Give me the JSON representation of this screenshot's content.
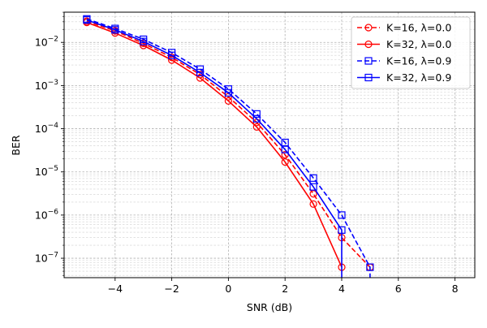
{
  "chart_data": {
    "type": "line",
    "xlabel": "SNR (dB)",
    "ylabel": "BER",
    "xlim": [
      -5.8,
      8.7
    ],
    "ylim_log10": [
      -7.45,
      -1.3
    ],
    "yscale": "log",
    "grid": "both (major and minor)",
    "legend_position": "upper right",
    "xticks": [
      -4,
      -2,
      0,
      2,
      4,
      6,
      8
    ],
    "xtick_labels": [
      "−4",
      "−2",
      "0",
      "2",
      "4",
      "6",
      "8"
    ],
    "yticks": [
      {
        "exp": -7,
        "base": "10",
        "sup": "−7"
      },
      {
        "exp": -6,
        "base": "10",
        "sup": "−6"
      },
      {
        "exp": -5,
        "base": "10",
        "sup": "−5"
      },
      {
        "exp": -4,
        "base": "10",
        "sup": "−4"
      },
      {
        "exp": -3,
        "base": "10",
        "sup": "−3"
      },
      {
        "exp": -2,
        "base": "10",
        "sup": "−2"
      }
    ],
    "series": [
      {
        "name": "K=16, λ=0.0",
        "color": "#ff0000",
        "linestyle": "dashed",
        "marker": "circle",
        "x": [
          -5,
          -4,
          -3,
          -2,
          -1,
          0,
          1,
          2,
          3,
          4,
          5
        ],
        "y": [
          0.031,
          0.0185,
          0.0095,
          0.0045,
          0.0018,
          0.00055,
          0.00014,
          2.5e-05,
          3.1e-06,
          3e-07,
          6.2e-08
        ],
        "drop_to_zero_after": false
      },
      {
        "name": "K=32, λ=0.0",
        "color": "#ff0000",
        "linestyle": "solid",
        "marker": "circle",
        "x": [
          -5,
          -4,
          -3,
          -2,
          -1,
          0,
          1,
          2,
          3,
          4
        ],
        "y": [
          0.029,
          0.0165,
          0.0085,
          0.0039,
          0.0015,
          0.00044,
          0.00011,
          1.7e-05,
          1.8e-06,
          6.2e-08
        ],
        "drop_to_zero_after": false
      },
      {
        "name": "K=16, λ=0.9",
        "color": "#0000ff",
        "linestyle": "dashed",
        "marker": "square",
        "x": [
          -5,
          -4,
          -3,
          -2,
          -1,
          0,
          1,
          2,
          3,
          4,
          5
        ],
        "y": [
          0.035,
          0.021,
          0.0118,
          0.0058,
          0.0024,
          0.00083,
          0.00022,
          4.8e-05,
          7.2e-06,
          1e-06,
          6.2e-08
        ],
        "drop_to_zero_after": true
      },
      {
        "name": "K=32, λ=0.9",
        "color": "#0000ff",
        "linestyle": "solid",
        "marker": "square",
        "x": [
          -5,
          -4,
          -3,
          -2,
          -1,
          0,
          1,
          2,
          3,
          4
        ],
        "y": [
          0.033,
          0.0195,
          0.0105,
          0.005,
          0.002,
          0.00068,
          0.00017,
          3.3e-05,
          4.5e-06,
          4.5e-07
        ],
        "drop_to_zero_after": true
      }
    ]
  }
}
